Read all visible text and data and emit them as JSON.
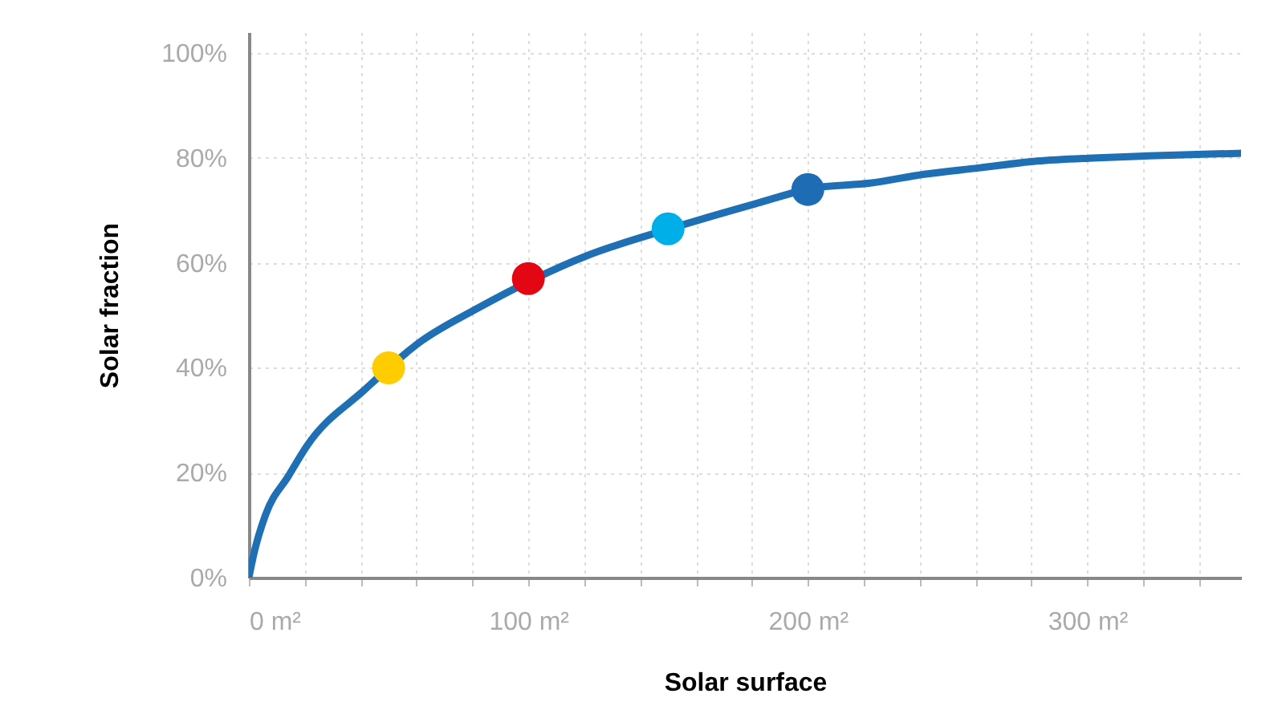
{
  "chart_data": {
    "type": "line",
    "xlabel": "Solar surface",
    "ylabel": "Solar fraction",
    "xlim": [
      0,
      355
    ],
    "ylim": [
      0,
      104
    ],
    "xticks": [
      {
        "value": 0,
        "label": "0 m²"
      },
      {
        "value": 20,
        "label": null
      },
      {
        "value": 40,
        "label": null
      },
      {
        "value": 60,
        "label": null
      },
      {
        "value": 80,
        "label": null
      },
      {
        "value": 100,
        "label": "100 m²"
      },
      {
        "value": 120,
        "label": null
      },
      {
        "value": 140,
        "label": null
      },
      {
        "value": 160,
        "label": null
      },
      {
        "value": 180,
        "label": null
      },
      {
        "value": 200,
        "label": "200 m²"
      },
      {
        "value": 220,
        "label": null
      },
      {
        "value": 240,
        "label": null
      },
      {
        "value": 260,
        "label": null
      },
      {
        "value": 280,
        "label": null
      },
      {
        "value": 300,
        "label": "300 m²"
      },
      {
        "value": 320,
        "label": null
      },
      {
        "value": 340,
        "label": null
      }
    ],
    "yticks": [
      {
        "value": 0,
        "label": "0%"
      },
      {
        "value": 20,
        "label": "20%"
      },
      {
        "value": 40,
        "label": "40%"
      },
      {
        "value": 60,
        "label": "60%"
      },
      {
        "value": 80,
        "label": "80%"
      },
      {
        "value": 100,
        "label": "100%"
      }
    ],
    "grid": true,
    "line_style": "solid",
    "series": [
      {
        "type": "line",
        "color": "#1f6fb5",
        "x": [
          0,
          2,
          6,
          14.2,
          20.9,
          41.4,
          61.7,
          81.3,
          120.6,
          151.2,
          181.4,
          202.3,
          222.2,
          241.6,
          261.1,
          282,
          302,
          322,
          341.5,
          355
        ],
        "values": [
          0,
          5,
          12,
          19.4,
          25.2,
          35.8,
          45.1,
          51.2,
          61.3,
          66.6,
          71.3,
          74.3,
          75.2,
          76.9,
          78.1,
          79.4,
          80.0,
          80.4,
          80.7,
          80.9
        ]
      },
      {
        "type": "scatter",
        "marker": "circle",
        "colors": [
          "#ffcc00",
          "#e30613",
          "#00aee8",
          "#1e6db4"
        ],
        "x": [
          50,
          100,
          150,
          200
        ],
        "values": [
          40,
          57,
          66.5,
          74
        ]
      }
    ]
  }
}
